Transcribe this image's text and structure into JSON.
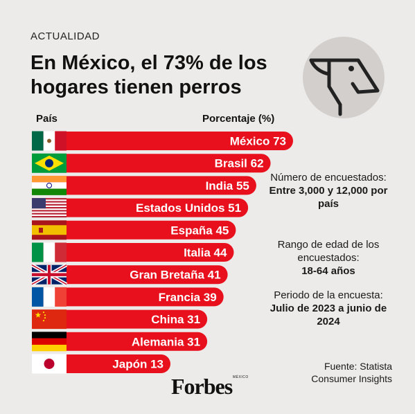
{
  "kicker": "ACTUALIDAD",
  "title": "En México, el 73% de los hogares tienen perros",
  "icon": "dog-head-icon",
  "brand": "Forbes",
  "brand_sub": "MÉXICO",
  "colors": {
    "bar": "#e8101d",
    "background": "#ecebe9",
    "icon_circle": "#d3cfcc",
    "text": "#1a1a1a"
  },
  "chart_data": {
    "type": "bar",
    "orientation": "horizontal",
    "xlabel": "País",
    "ylabel": "Porcentaje (%)",
    "categories": [
      "México",
      "Brasil",
      "India",
      "Estados Unidos",
      "España",
      "Italia",
      "Gran Bretaña",
      "Francia",
      "China",
      "Alemania",
      "Japón"
    ],
    "values": [
      73,
      62,
      55,
      51,
      45,
      44,
      41,
      39,
      31,
      31,
      13
    ],
    "flags": [
      "mexico-flag-icon",
      "brazil-flag-icon",
      "india-flag-icon",
      "usa-flag-icon",
      "spain-flag-icon",
      "italy-flag-icon",
      "uk-flag-icon",
      "france-flag-icon",
      "china-flag-icon",
      "germany-flag-icon",
      "japan-flag-icon"
    ],
    "grid": false,
    "legend": "none"
  },
  "info": {
    "respondents_label": "Número de encuestados:",
    "respondents_value": "Entre 3,000 y 12,000 por país",
    "age_label": "Rango de edad de los encuestados:",
    "age_value": "18-64 años",
    "period_label": "Periodo de la encuesta:",
    "period_value": "Julio de 2023 a junio de 2024"
  },
  "source": "Fuente: Statista Consumer Insights"
}
